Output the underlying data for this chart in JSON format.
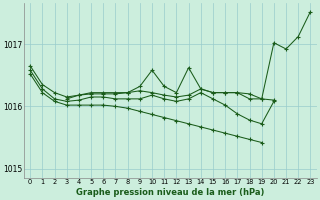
{
  "background_color": "#cceedd",
  "line_color": "#1a5c1a",
  "marker_color": "#1a5c1a",
  "xlabel": "Graphe pression niveau de la mer (hPa)",
  "ylim": [
    1014.85,
    1017.65
  ],
  "yticks": [
    1015,
    1016,
    1017
  ],
  "xlim": [
    -0.5,
    23.5
  ],
  "xticks": [
    0,
    1,
    2,
    3,
    4,
    5,
    6,
    7,
    8,
    9,
    10,
    11,
    12,
    13,
    14,
    15,
    16,
    17,
    18,
    19,
    20,
    21,
    22,
    23
  ],
  "grid_color": "#99cccc",
  "series": [
    {
      "x": [
        0,
        1,
        2,
        3,
        4,
        5,
        6,
        7,
        8,
        9,
        10,
        11,
        12,
        13,
        14,
        15,
        16,
        17,
        18,
        19,
        20
      ],
      "y": [
        1016.65,
        1016.35,
        1016.22,
        1016.15,
        1016.18,
        1016.2,
        1016.2,
        1016.2,
        1016.22,
        1016.25,
        1016.22,
        1016.18,
        1016.15,
        1016.18,
        1016.28,
        1016.22,
        1016.22,
        1016.22,
        1016.2,
        1016.12,
        1016.1
      ]
    },
    {
      "x": [
        0,
        1,
        2,
        3,
        4,
        5,
        6,
        7,
        8,
        9,
        10,
        11,
        12,
        13,
        14,
        15,
        16,
        17,
        18,
        19,
        20
      ],
      "y": [
        1016.58,
        1016.28,
        1016.12,
        1016.08,
        1016.1,
        1016.15,
        1016.15,
        1016.12,
        1016.12,
        1016.12,
        1016.18,
        1016.12,
        1016.08,
        1016.12,
        1016.22,
        1016.12,
        1016.02,
        1015.88,
        1015.78,
        1015.72,
        1016.08
      ]
    },
    {
      "x": [
        0,
        1,
        2,
        3,
        4,
        5,
        6,
        7,
        8,
        9,
        10,
        11,
        12,
        13,
        14,
        15,
        16,
        17,
        18,
        19
      ],
      "y": [
        1016.52,
        1016.22,
        1016.08,
        1016.02,
        1016.02,
        1016.02,
        1016.02,
        1016.0,
        1015.97,
        1015.92,
        1015.87,
        1015.82,
        1015.77,
        1015.72,
        1015.67,
        1015.62,
        1015.57,
        1015.52,
        1015.47,
        1015.42
      ]
    },
    {
      "x": [
        3,
        4,
        5,
        6,
        7,
        8,
        9,
        10,
        11,
        12,
        13,
        14,
        15,
        16,
        17,
        18,
        19,
        20,
        21,
        22,
        23
      ],
      "y": [
        1016.12,
        1016.18,
        1016.22,
        1016.22,
        1016.22,
        1016.22,
        1016.32,
        1016.58,
        1016.32,
        1016.22,
        1016.62,
        1016.28,
        1016.22,
        1016.22,
        1016.22,
        1016.12,
        1016.12,
        1017.02,
        1016.92,
        1017.12,
        1017.52
      ]
    }
  ]
}
